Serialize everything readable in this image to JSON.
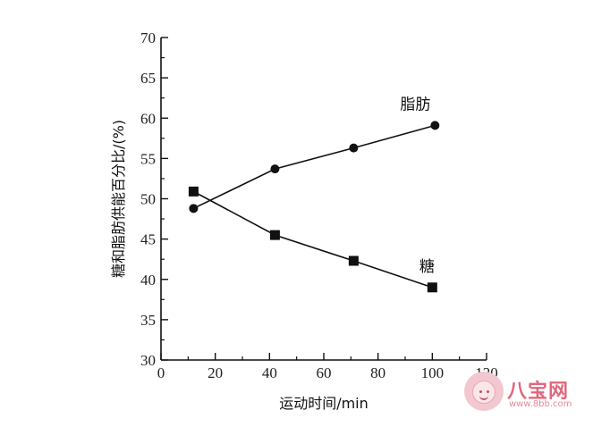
{
  "chart_data": {
    "type": "line",
    "title": "",
    "xlabel": "运动时间/min",
    "ylabel": "糖和脂肪供能百分比/(%)",
    "xlim": [
      0,
      120
    ],
    "ylim": [
      30,
      70
    ],
    "x_ticks": [
      0,
      20,
      40,
      60,
      80,
      100,
      120
    ],
    "y_ticks": [
      30,
      35,
      40,
      45,
      50,
      55,
      60,
      65,
      70
    ],
    "grid": false,
    "series": [
      {
        "name": "脂肪",
        "marker": "circle",
        "x": [
          12,
          42,
          71,
          101
        ],
        "y": [
          48.8,
          53.7,
          56.3,
          59.1
        ]
      },
      {
        "name": "糖",
        "marker": "square",
        "x": [
          12,
          42,
          71,
          100
        ],
        "y": [
          50.9,
          45.5,
          42.3,
          39.0
        ]
      }
    ]
  },
  "watermark": {
    "brand": "八宝网",
    "url": "www.8bb.com"
  }
}
